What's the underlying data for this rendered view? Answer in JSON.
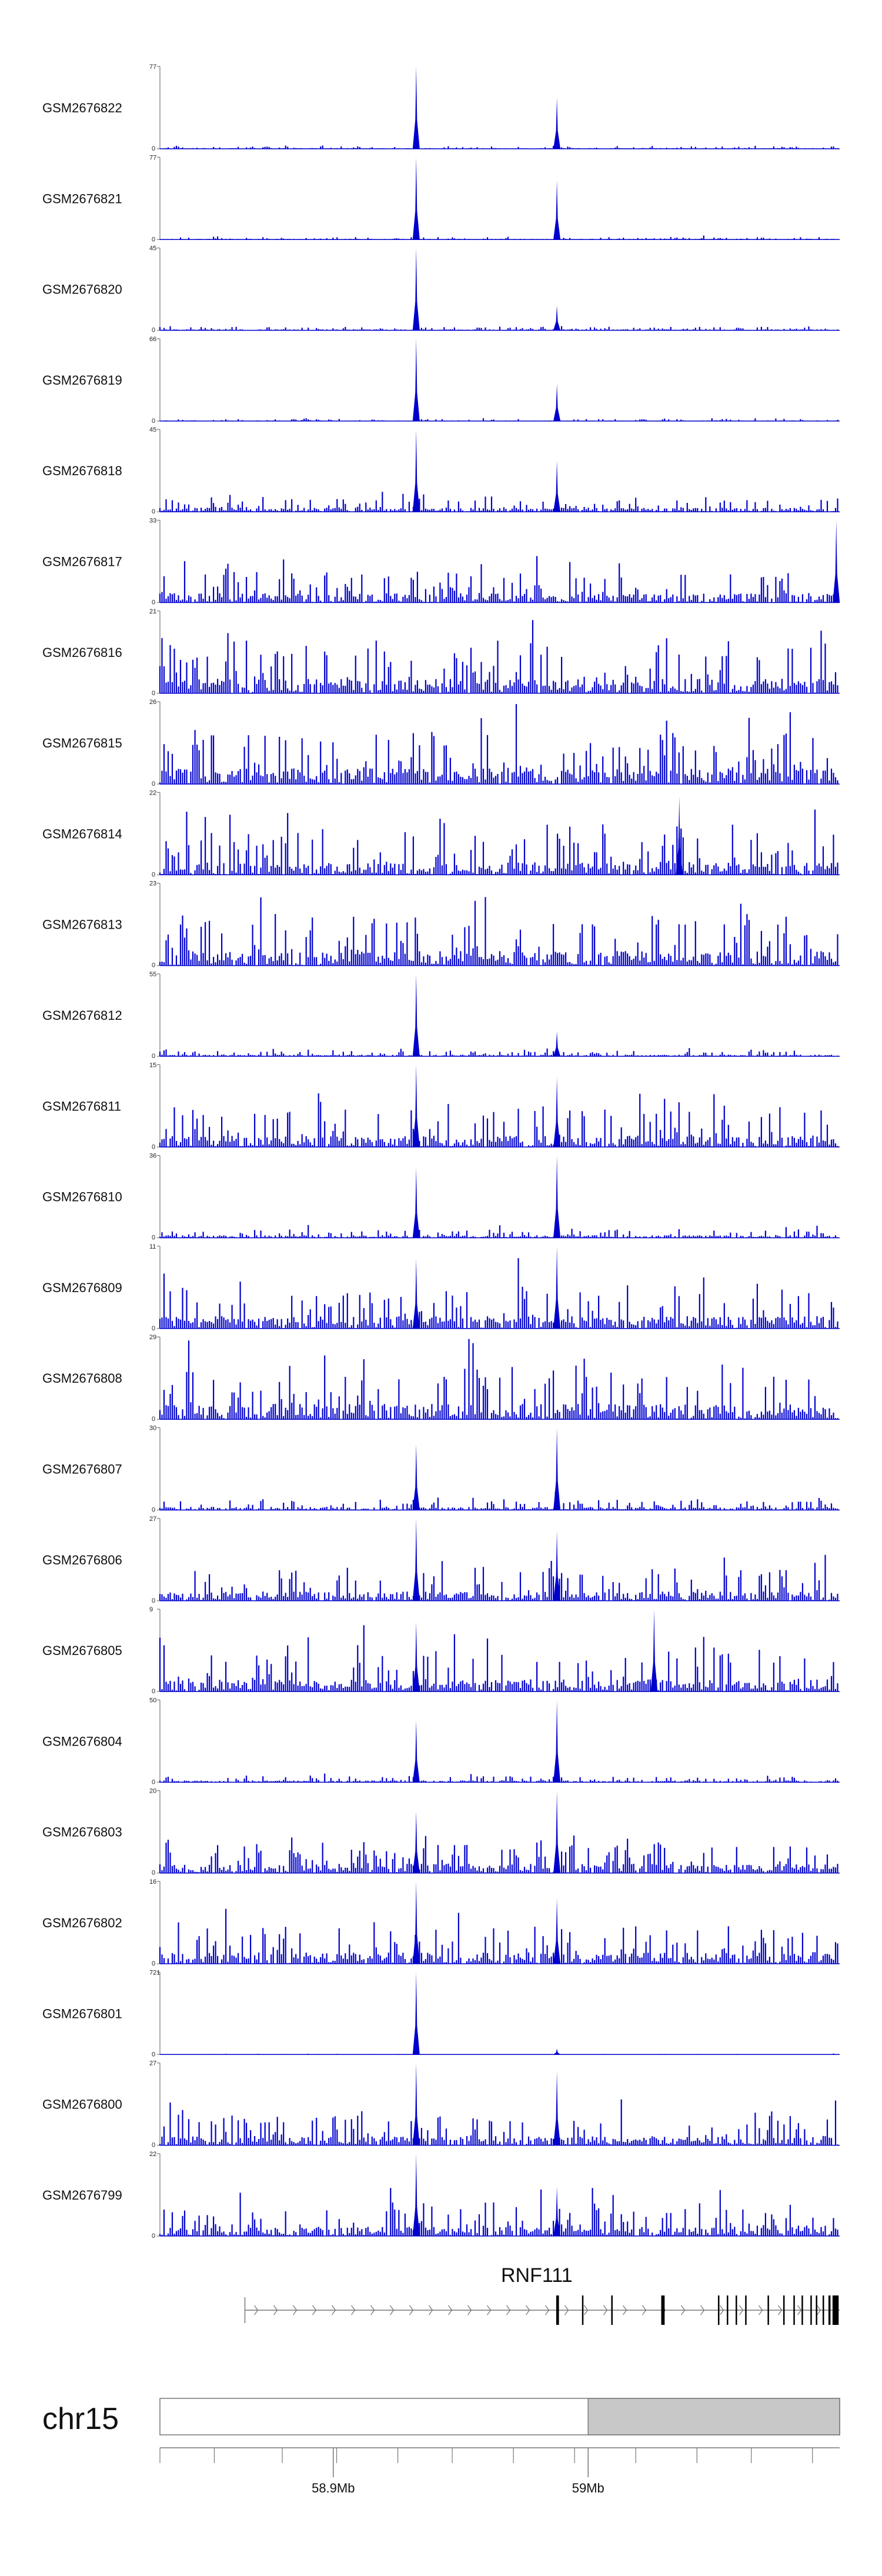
{
  "colors": {
    "signal": "#0000cc",
    "axis": "#777777",
    "text": "#111111",
    "gene": "#777777",
    "exon": "#000000",
    "ideogram_band": "#c8c8c8"
  },
  "chart_data": {
    "type": "area",
    "tracks": [
      {
        "name": "GSM2676822",
        "ymax": 77,
        "ymin": 0,
        "noise": 0.035,
        "peaks": [
          {
            "pos": 0.377,
            "height": 1.0
          },
          {
            "pos": 0.584,
            "height": 0.62
          }
        ]
      },
      {
        "name": "GSM2676821",
        "ymax": 77,
        "ymin": 0,
        "noise": 0.035,
        "peaks": [
          {
            "pos": 0.377,
            "height": 1.0
          },
          {
            "pos": 0.584,
            "height": 0.72
          }
        ]
      },
      {
        "name": "GSM2676820",
        "ymax": 45,
        "ymin": 0,
        "noise": 0.05,
        "peaks": [
          {
            "pos": 0.377,
            "height": 1.0
          },
          {
            "pos": 0.584,
            "height": 0.3
          }
        ]
      },
      {
        "name": "GSM2676819",
        "ymax": 66,
        "ymin": 0,
        "noise": 0.03,
        "peaks": [
          {
            "pos": 0.377,
            "height": 1.0
          },
          {
            "pos": 0.584,
            "height": 0.45
          }
        ]
      },
      {
        "name": "GSM2676818",
        "ymax": 45,
        "ymin": 0,
        "noise": 0.2,
        "peaks": [
          {
            "pos": 0.377,
            "height": 1.0
          },
          {
            "pos": 0.584,
            "height": 0.62
          }
        ]
      },
      {
        "name": "GSM2676817",
        "ymax": 33,
        "ymin": 0,
        "noise": 0.45,
        "peaks": [
          {
            "pos": 0.995,
            "height": 1.0
          }
        ]
      },
      {
        "name": "GSM2676816",
        "ymax": 21,
        "ymin": 0,
        "noise": 0.7,
        "peaks": []
      },
      {
        "name": "GSM2676815",
        "ymax": 26,
        "ymin": 0,
        "noise": 0.75,
        "peaks": []
      },
      {
        "name": "GSM2676814",
        "ymax": 22,
        "ymin": 0,
        "noise": 0.6,
        "peaks": [
          {
            "pos": 0.764,
            "height": 0.95
          }
        ]
      },
      {
        "name": "GSM2676813",
        "ymax": 23,
        "ymin": 0,
        "noise": 0.7,
        "peaks": []
      },
      {
        "name": "GSM2676812",
        "ymax": 55,
        "ymin": 0,
        "noise": 0.08,
        "peaks": [
          {
            "pos": 0.377,
            "height": 1.0
          },
          {
            "pos": 0.584,
            "height": 0.3
          }
        ]
      },
      {
        "name": "GSM2676811",
        "ymax": 15,
        "ymin": 0,
        "noise": 0.55,
        "peaks": [
          {
            "pos": 0.377,
            "height": 1.0
          },
          {
            "pos": 0.584,
            "height": 0.85
          }
        ]
      },
      {
        "name": "GSM2676810",
        "ymax": 36,
        "ymin": 0,
        "noise": 0.12,
        "peaks": [
          {
            "pos": 0.377,
            "height": 0.85
          },
          {
            "pos": 0.584,
            "height": 1.0
          }
        ]
      },
      {
        "name": "GSM2676809",
        "ymax": 11,
        "ymin": 0,
        "noise": 0.6,
        "peaks": [
          {
            "pos": 0.377,
            "height": 0.85
          },
          {
            "pos": 0.584,
            "height": 1.0
          }
        ]
      },
      {
        "name": "GSM2676808",
        "ymax": 29,
        "ymin": 0,
        "noise": 0.75,
        "peaks": []
      },
      {
        "name": "GSM2676807",
        "ymax": 30,
        "ymin": 0,
        "noise": 0.15,
        "peaks": [
          {
            "pos": 0.377,
            "height": 0.8
          },
          {
            "pos": 0.584,
            "height": 1.0
          }
        ]
      },
      {
        "name": "GSM2676806",
        "ymax": 27,
        "ymin": 0,
        "noise": 0.45,
        "peaks": [
          {
            "pos": 0.377,
            "height": 1.0
          },
          {
            "pos": 0.584,
            "height": 0.85
          }
        ]
      },
      {
        "name": "GSM2676805",
        "ymax": 9,
        "ymin": 0,
        "noise": 0.6,
        "peaks": [
          {
            "pos": 0.377,
            "height": 0.85
          },
          {
            "pos": 0.727,
            "height": 1.0
          }
        ]
      },
      {
        "name": "GSM2676804",
        "ymax": 50,
        "ymin": 0,
        "noise": 0.09,
        "peaks": [
          {
            "pos": 0.377,
            "height": 0.75
          },
          {
            "pos": 0.584,
            "height": 1.0
          }
        ]
      },
      {
        "name": "GSM2676803",
        "ymax": 20,
        "ymin": 0,
        "noise": 0.45,
        "peaks": [
          {
            "pos": 0.377,
            "height": 0.75
          },
          {
            "pos": 0.584,
            "height": 1.0
          }
        ]
      },
      {
        "name": "GSM2676802",
        "ymax": 16,
        "ymin": 0,
        "noise": 0.55,
        "peaks": [
          {
            "pos": 0.377,
            "height": 1.0
          },
          {
            "pos": 0.584,
            "height": 0.8
          }
        ]
      },
      {
        "name": "GSM2676801",
        "ymax": 721,
        "ymin": 0,
        "noise": 0.008,
        "peaks": [
          {
            "pos": 0.377,
            "height": 1.0
          },
          {
            "pos": 0.584,
            "height": 0.07
          }
        ]
      },
      {
        "name": "GSM2676800",
        "ymax": 27,
        "ymin": 0,
        "noise": 0.45,
        "peaks": [
          {
            "pos": 0.377,
            "height": 1.0
          },
          {
            "pos": 0.584,
            "height": 0.9
          }
        ]
      },
      {
        "name": "GSM2676799",
        "ymax": 22,
        "ymin": 0,
        "noise": 0.45,
        "peaks": [
          {
            "pos": 0.377,
            "height": 1.0
          },
          {
            "pos": 0.584,
            "height": 0.6
          }
        ]
      }
    ],
    "gene": {
      "name": "RNF111",
      "strand": "+",
      "start": 0.125,
      "end": 1.0,
      "exons": [
        {
          "pos": 0.585,
          "w": 0.004
        },
        {
          "pos": 0.622,
          "w": 0.0015
        },
        {
          "pos": 0.665,
          "w": 0.0015
        },
        {
          "pos": 0.74,
          "w": 0.005
        },
        {
          "pos": 0.822,
          "w": 0.0015
        },
        {
          "pos": 0.835,
          "w": 0.0015
        },
        {
          "pos": 0.848,
          "w": 0.0015
        },
        {
          "pos": 0.862,
          "w": 0.0015
        },
        {
          "pos": 0.895,
          "w": 0.0015
        },
        {
          "pos": 0.918,
          "w": 0.0015
        },
        {
          "pos": 0.933,
          "w": 0.0015
        },
        {
          "pos": 0.945,
          "w": 0.0015
        },
        {
          "pos": 0.958,
          "w": 0.0015
        },
        {
          "pos": 0.966,
          "w": 0.0015
        },
        {
          "pos": 0.976,
          "w": 0.0015
        },
        {
          "pos": 0.985,
          "w": 0.003
        },
        {
          "pos": 0.994,
          "w": 0.009
        }
      ]
    },
    "chromosome": "chr15",
    "ideogram": {
      "band_start": 0.63
    },
    "axis": {
      "minor_ticks": [
        0.0,
        0.08,
        0.18,
        0.26,
        0.35,
        0.43,
        0.52,
        0.61,
        0.7,
        0.79,
        0.87,
        0.96
      ],
      "labeled_ticks": [
        {
          "pos": 0.255,
          "label": "58.9Mb"
        },
        {
          "pos": 0.63,
          "label": "59Mb"
        }
      ]
    }
  }
}
